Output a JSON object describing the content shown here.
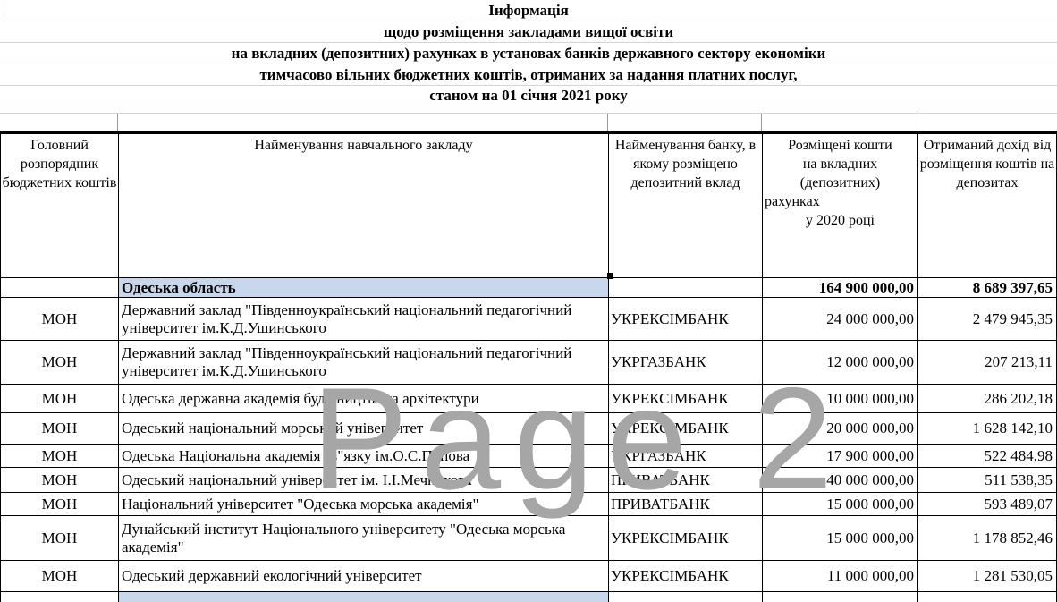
{
  "title": {
    "lines": [
      "Інформація",
      "щодо розміщення закладами вищої освіти",
      "на вкладних (депозитних) рахунках в установах банків державного сектору економіки",
      "тимчасово вільних бюджетних коштів, отриманих за надання платних послуг,",
      "станом на 01 січня 2021 року"
    ]
  },
  "watermark": "Page 2",
  "table": {
    "columns": [
      {
        "header": "Головний розпорядник бюджетних коштів"
      },
      {
        "header": "Найменування навчального закладу"
      },
      {
        "header": "Найменування банку, в якому розміщено депозитний вклад"
      },
      {
        "header_lines": [
          "Розміщені кошти",
          "на вкладних",
          "(депозитних)",
          "рахунках",
          "у 2020 році"
        ]
      },
      {
        "header": "Отриманий дохід від розміщення коштів на депозитах"
      }
    ],
    "region_row": {
      "label": "Одеська область",
      "placed": "164 900 000,00",
      "income": "8 689 397,65"
    },
    "rows": [
      {
        "manager": "МОН",
        "institution": "Державний заклад \"Південноукраїнський національний педагогічний університет ім.К.Д.Ушинського",
        "bank": "УКРЕКСІМБАНК",
        "placed": "24 000 000,00",
        "income": "2 479 945,35"
      },
      {
        "manager": "МОН",
        "institution": "Державний заклад \"Південноукраїнський національний педагогічний університет ім.К.Д.Ушинського",
        "bank": "УКРГАЗБАНК",
        "placed": "12 000 000,00",
        "income": "207 213,11"
      },
      {
        "manager": "МОН",
        "institution": "Одеська державна академія будівництва та архітектури",
        "bank": "УКРЕКСІМБАНК",
        "placed": "10 000 000,00",
        "income": "286 202,18"
      },
      {
        "manager": "МОН",
        "institution": "Одеський національний морський університет",
        "bank": "УКРЕКСІМБАНК",
        "placed": "20 000 000,00",
        "income": "1 628 142,10"
      },
      {
        "manager": "МОН",
        "institution": "Одеська Національна академія зв\"язку ім.О.С.Попова",
        "bank": "УКРГАЗБАНК",
        "placed": "17 900 000,00",
        "income": "522 484,98"
      },
      {
        "manager": "МОН",
        "institution": "Одеський національний університет ім. І.І.Мечникова",
        "bank": "ПРИВАТБАНК",
        "placed": "40 000 000,00",
        "income": "511 538,35"
      },
      {
        "manager": "МОН",
        "institution": "Національний університет \"Одеська морська академія\"",
        "bank": "ПРИВАТБАНК",
        "placed": "15 000 000,00",
        "income": "593 489,07"
      },
      {
        "manager": "МОН",
        "institution": "Дунайський інститут Національного університету \"Одеська морська академія\"",
        "bank": "УКРЕКСІМБАНК",
        "placed": "15 000 000,00",
        "income": "1 178 852,46"
      },
      {
        "manager": "МОН",
        "institution": "Одеський державний екологічний університет",
        "bank": "УКРЕКСІМБАНК",
        "placed": "11 000 000,00",
        "income": "1 281 530,05"
      }
    ]
  },
  "colors": {
    "region_highlight": "#c9d7ed",
    "watermark_gray": "#a6a6a6",
    "border_dark": "#000000",
    "grid_light": "#d4d3d8"
  }
}
